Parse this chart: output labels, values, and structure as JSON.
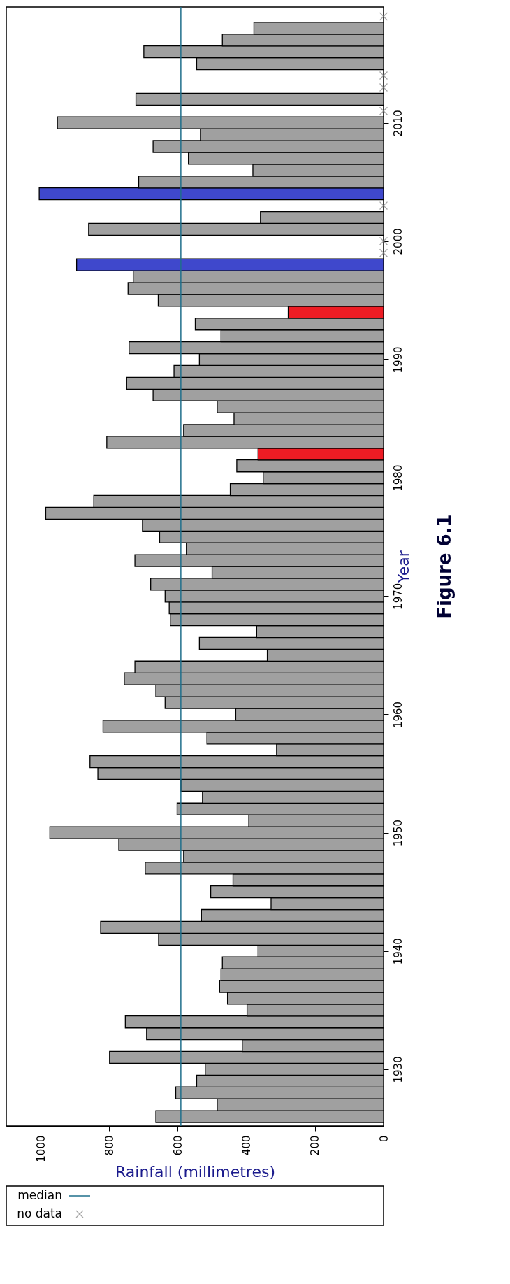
{
  "chart_data": {
    "type": "bar",
    "orientation": "horizontal",
    "title": "Figure 6.1",
    "xlabel": "Rainfall (millimetres)",
    "ylabel": "Year",
    "x": [
      1926,
      1927,
      1928,
      1929,
      1930,
      1931,
      1932,
      1933,
      1934,
      1935,
      1936,
      1937,
      1938,
      1939,
      1940,
      1941,
      1942,
      1943,
      1944,
      1945,
      1946,
      1947,
      1948,
      1949,
      1950,
      1951,
      1952,
      1953,
      1954,
      1955,
      1956,
      1957,
      1958,
      1959,
      1960,
      1961,
      1962,
      1963,
      1964,
      1965,
      1966,
      1967,
      1968,
      1969,
      1970,
      1971,
      1972,
      1973,
      1974,
      1975,
      1976,
      1977,
      1978,
      1979,
      1980,
      1981,
      1982,
      1983,
      1984,
      1985,
      1986,
      1987,
      1988,
      1989,
      1990,
      1991,
      1992,
      1993,
      1994,
      1995,
      1996,
      1997,
      1998,
      1999,
      2000,
      2001,
      2002,
      2003,
      2004,
      2005,
      2006,
      2007,
      2008,
      2009,
      2010,
      2011,
      2012,
      2013,
      2014,
      2015,
      2016,
      2017,
      2018
    ],
    "series": [
      {
        "values": [
          664,
          485,
          606,
          545,
          520,
          799,
          412,
          691,
          753,
          398,
          455,
          478,
          474,
          470,
          366,
          656,
          825,
          531,
          328,
          504,
          439,
          695,
          583,
          772,
          973,
          393,
          602,
          528,
          591,
          833,
          856,
          312,
          515,
          818,
          431,
          637,
          664,
          756,
          725,
          339,
          537,
          370,
          622,
          625,
          637,
          679,
          500,
          725,
          575,
          653,
          703,
          985,
          845,
          447,
          351,
          428,
          366,
          807,
          583,
          436,
          485,
          672,
          749,
          611,
          537,
          742,
          474,
          549,
          278,
          657,
          745,
          730,
          895,
          null,
          null,
          860,
          359,
          null,
          1004,
          714,
          381,
          569,
          672,
          534,
          951,
          null,
          722,
          null,
          null,
          545,
          699,
          470,
          378
        ],
        "colors": [
          "#a0a0a0",
          "#a0a0a0",
          "#a0a0a0",
          "#a0a0a0",
          "#a0a0a0",
          "#a0a0a0",
          "#a0a0a0",
          "#a0a0a0",
          "#a0a0a0",
          "#a0a0a0",
          "#a0a0a0",
          "#a0a0a0",
          "#a0a0a0",
          "#a0a0a0",
          "#a0a0a0",
          "#a0a0a0",
          "#a0a0a0",
          "#a0a0a0",
          "#a0a0a0",
          "#a0a0a0",
          "#a0a0a0",
          "#a0a0a0",
          "#a0a0a0",
          "#a0a0a0",
          "#a0a0a0",
          "#a0a0a0",
          "#a0a0a0",
          "#a0a0a0",
          "#a0a0a0",
          "#a0a0a0",
          "#a0a0a0",
          "#a0a0a0",
          "#a0a0a0",
          "#a0a0a0",
          "#a0a0a0",
          "#a0a0a0",
          "#a0a0a0",
          "#a0a0a0",
          "#a0a0a0",
          "#a0a0a0",
          "#a0a0a0",
          "#a0a0a0",
          "#a0a0a0",
          "#a0a0a0",
          "#a0a0a0",
          "#a0a0a0",
          "#a0a0a0",
          "#a0a0a0",
          "#a0a0a0",
          "#a0a0a0",
          "#a0a0a0",
          "#a0a0a0",
          "#a0a0a0",
          "#a0a0a0",
          "#a0a0a0",
          "#a0a0a0",
          "#ed1c24",
          "#a0a0a0",
          "#a0a0a0",
          "#a0a0a0",
          "#a0a0a0",
          "#a0a0a0",
          "#a0a0a0",
          "#a0a0a0",
          "#a0a0a0",
          "#a0a0a0",
          "#a0a0a0",
          "#a0a0a0",
          "#ed1c24",
          "#a0a0a0",
          "#a0a0a0",
          "#a0a0a0",
          "#3f48cc",
          "#a0a0a0",
          "#a0a0a0",
          "#a0a0a0",
          "#a0a0a0",
          "#a0a0a0",
          "#3f48cc",
          "#a0a0a0",
          "#a0a0a0",
          "#a0a0a0",
          "#a0a0a0",
          "#a0a0a0",
          "#a0a0a0",
          "#a0a0a0",
          "#a0a0a0",
          "#a0a0a0",
          "#a0a0a0",
          "#a0a0a0",
          "#a0a0a0",
          "#a0a0a0",
          "#a0a0a0"
        ]
      },
      {
        "type": "scatter",
        "name": "no data",
        "color": "#808080",
        "marker": "cross",
        "x": [
          1999,
          2000,
          2003,
          2011,
          2013,
          2014,
          2019
        ],
        "values": [
          0,
          0,
          0,
          0,
          0,
          0,
          0
        ]
      }
    ],
    "ref_lines": [
      {
        "axis": "x",
        "value": 591,
        "label": "median",
        "color": "#1f6f8b"
      }
    ],
    "xlim": [
      1100,
      0
    ],
    "xticks": [
      0,
      200,
      400,
      600,
      800,
      1000
    ],
    "ylim": [
      1925.5,
      2019.5
    ],
    "yticks": [
      1930,
      1940,
      1950,
      1960,
      1970,
      1980,
      1990,
      2000,
      2010
    ],
    "grid": false,
    "legend": "bottom left"
  }
}
